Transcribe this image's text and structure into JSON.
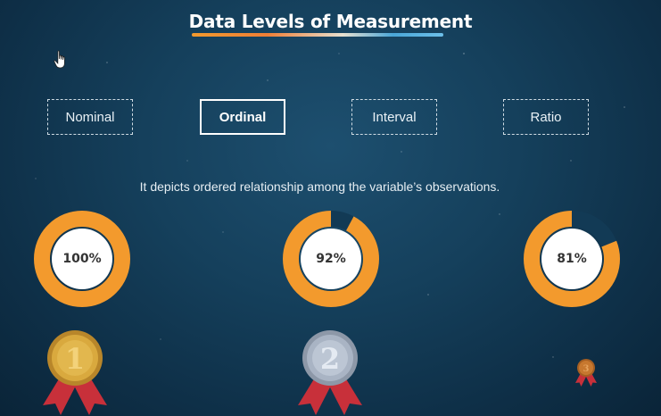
{
  "title": "Data Levels of Measurement",
  "tabs": [
    {
      "label": "Nominal",
      "active": false
    },
    {
      "label": "Ordinal",
      "active": true
    },
    {
      "label": "Interval",
      "active": false
    },
    {
      "label": "Ratio",
      "active": false
    }
  ],
  "description": "It depicts ordered relationship among the variable’s observations.",
  "gauges": [
    {
      "label": "100%",
      "fraction": 1.0
    },
    {
      "label": "92%",
      "fraction": 0.92
    },
    {
      "label": "81%",
      "fraction": 0.81
    }
  ],
  "medals": [
    {
      "rank": "1",
      "color": "#d9a93e"
    },
    {
      "rank": "2",
      "color": "#a9b4c4"
    },
    {
      "rank": "3",
      "color": "#c7782f"
    }
  ],
  "colors": {
    "accent": "#f39a2d",
    "ribbon": "#c8303a",
    "background": "#15405c"
  }
}
